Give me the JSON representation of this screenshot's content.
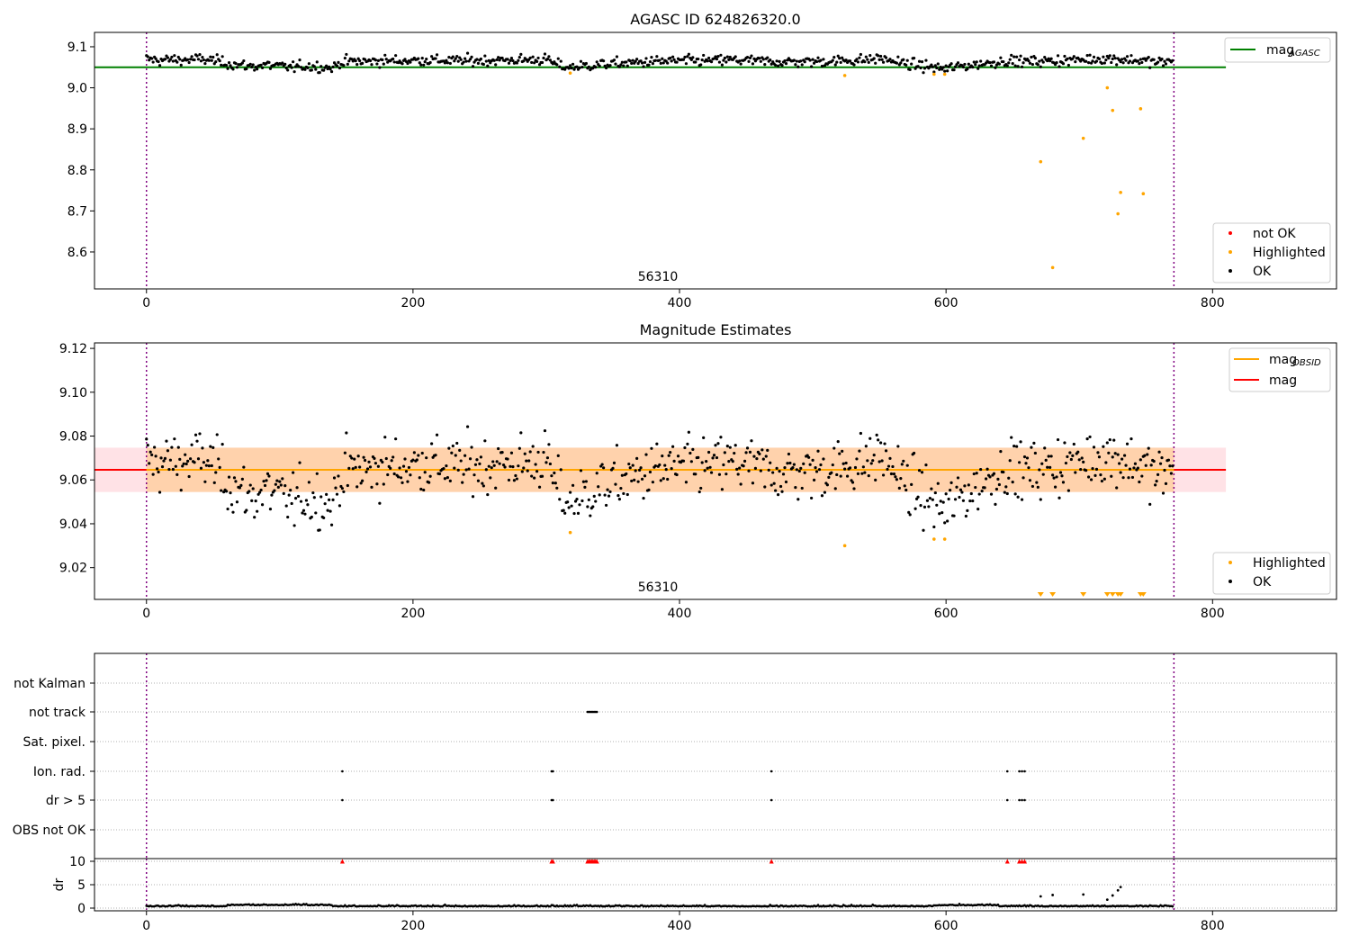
{
  "chart_data": [
    {
      "type": "scatter",
      "title": "AGASC ID 624826320.0",
      "annotation": "56310",
      "xlim": [
        -39,
        893
      ],
      "ylim": [
        8.51,
        9.135
      ],
      "xticks": [
        0,
        200,
        400,
        600,
        800
      ],
      "yticks": [
        8.6,
        8.7,
        8.8,
        8.9,
        9.0,
        9.1
      ],
      "vlines": [
        0,
        771
      ],
      "hline": {
        "label": "mag_AGASC",
        "y": 9.05,
        "color": "#008000"
      },
      "legend_upper": [
        {
          "label": "mag",
          "sub": "AGASC",
          "color": "#008000"
        }
      ],
      "legend_lower": [
        {
          "label": "not OK",
          "color": "#ff0000"
        },
        {
          "label": "Highlighted",
          "color": "#ffa500"
        },
        {
          "label": "OK",
          "color": "#000000"
        }
      ],
      "series": [
        {
          "name": "OK",
          "color": "#000000",
          "description": "770 points clustered between 9.04 and 9.09, same as Magnitude Estimates OK series"
        },
        {
          "name": "Highlighted",
          "color": "#ffa500",
          "x": [
            318,
            524,
            591,
            599,
            671,
            680,
            703,
            721,
            725,
            729,
            731,
            746,
            748
          ],
          "y": [
            9.036,
            9.03,
            9.033,
            9.033,
            8.82,
            8.562,
            8.877,
            9.0,
            8.945,
            8.693,
            8.745,
            8.949,
            8.742
          ]
        }
      ]
    },
    {
      "type": "scatter",
      "title": "Magnitude Estimates",
      "annotation": "56310",
      "xlim": [
        -39,
        893
      ],
      "ylim": [
        9.0055,
        9.1225
      ],
      "xticks": [
        0,
        200,
        400,
        600,
        800
      ],
      "yticks": [
        9.02,
        9.04,
        9.06,
        9.08,
        9.1,
        9.12
      ],
      "ytick_labels": [
        "9.02",
        "9.04",
        "9.06",
        "9.08",
        "9.10",
        "9.12"
      ],
      "vlines": [
        0,
        771
      ],
      "mag": 9.0646,
      "mag_band": [
        9.0545,
        9.0747
      ],
      "mag_obsid": 9.0646,
      "legend_upper": [
        {
          "label": "mag",
          "sub": "OBSID",
          "color": "#ffa500"
        },
        {
          "label": "mag",
          "sub": "",
          "color": "#ff0000"
        }
      ],
      "legend_lower": [
        {
          "label": "Highlighted",
          "color": "#ffa500"
        },
        {
          "label": "OK",
          "color": "#000000"
        }
      ],
      "anchors_x": [
        0,
        10,
        20,
        30,
        40,
        50,
        60,
        70,
        80,
        90,
        100,
        110,
        120,
        130,
        140,
        145,
        155,
        165,
        175,
        190,
        210,
        230,
        260,
        290,
        300,
        305,
        315,
        325,
        335,
        345,
        360,
        380,
        400,
        420,
        440,
        460,
        480,
        500,
        520,
        540,
        550,
        560,
        570,
        580,
        590,
        600,
        610,
        620,
        630,
        645,
        660,
        680,
        700,
        720,
        740,
        760,
        771
      ],
      "anchors_y": [
        9.07,
        9.067,
        9.069,
        9.068,
        9.07,
        9.067,
        9.06,
        9.055,
        9.052,
        9.056,
        9.052,
        9.05,
        9.053,
        9.051,
        9.048,
        9.062,
        9.065,
        9.064,
        9.066,
        9.066,
        9.068,
        9.066,
        9.067,
        9.068,
        9.07,
        9.06,
        9.05,
        9.052,
        9.055,
        9.058,
        9.06,
        9.064,
        9.066,
        9.066,
        9.068,
        9.065,
        9.063,
        9.064,
        9.066,
        9.068,
        9.072,
        9.066,
        9.058,
        9.054,
        9.05,
        9.046,
        9.052,
        9.056,
        9.06,
        9.066,
        9.064,
        9.066,
        9.068,
        9.072,
        9.068,
        9.062,
        9.065
      ],
      "highlighted_x": [
        318,
        524,
        591,
        599
      ],
      "highlighted_y": [
        9.036,
        9.03,
        9.033,
        9.033
      ],
      "below_range_x": [
        671,
        680,
        703,
        721,
        725,
        729,
        731,
        746,
        748
      ]
    },
    {
      "type": "scatter",
      "title": "",
      "xlim": [
        -39,
        893
      ],
      "xticks": [
        0,
        200,
        400,
        600,
        800
      ],
      "vlines": [
        0,
        771
      ],
      "flags_categories": [
        "not Kalman",
        "not track",
        "Sat. pixel.",
        "Ion. rad.",
        "dr > 5",
        "OBS not OK"
      ],
      "flags": [
        {
          "category": "not track",
          "x": [
            331,
            332,
            333,
            334,
            335,
            336,
            337,
            338
          ]
        },
        {
          "category": "Ion. rad.",
          "x": [
            147,
            304,
            305,
            469,
            646,
            655,
            657,
            659
          ]
        },
        {
          "category": "dr > 5",
          "x": [
            147,
            304,
            305,
            469,
            646,
            655,
            657,
            659
          ]
        }
      ],
      "dr_ylabel": "dr",
      "dr_yticks": [
        0,
        5,
        10
      ],
      "dr_ylim": [
        -0.5,
        10.5
      ],
      "dr_clipped_x": [
        147,
        304,
        305,
        331,
        332,
        333,
        334,
        335,
        336,
        337,
        338,
        469,
        646,
        655,
        657,
        659
      ],
      "dr_outliers": {
        "x": [
          671,
          680,
          703,
          721,
          725,
          729,
          731
        ],
        "y": [
          2.5,
          2.8,
          2.9,
          1.8,
          2.7,
          3.8,
          4.5
        ]
      }
    }
  ]
}
